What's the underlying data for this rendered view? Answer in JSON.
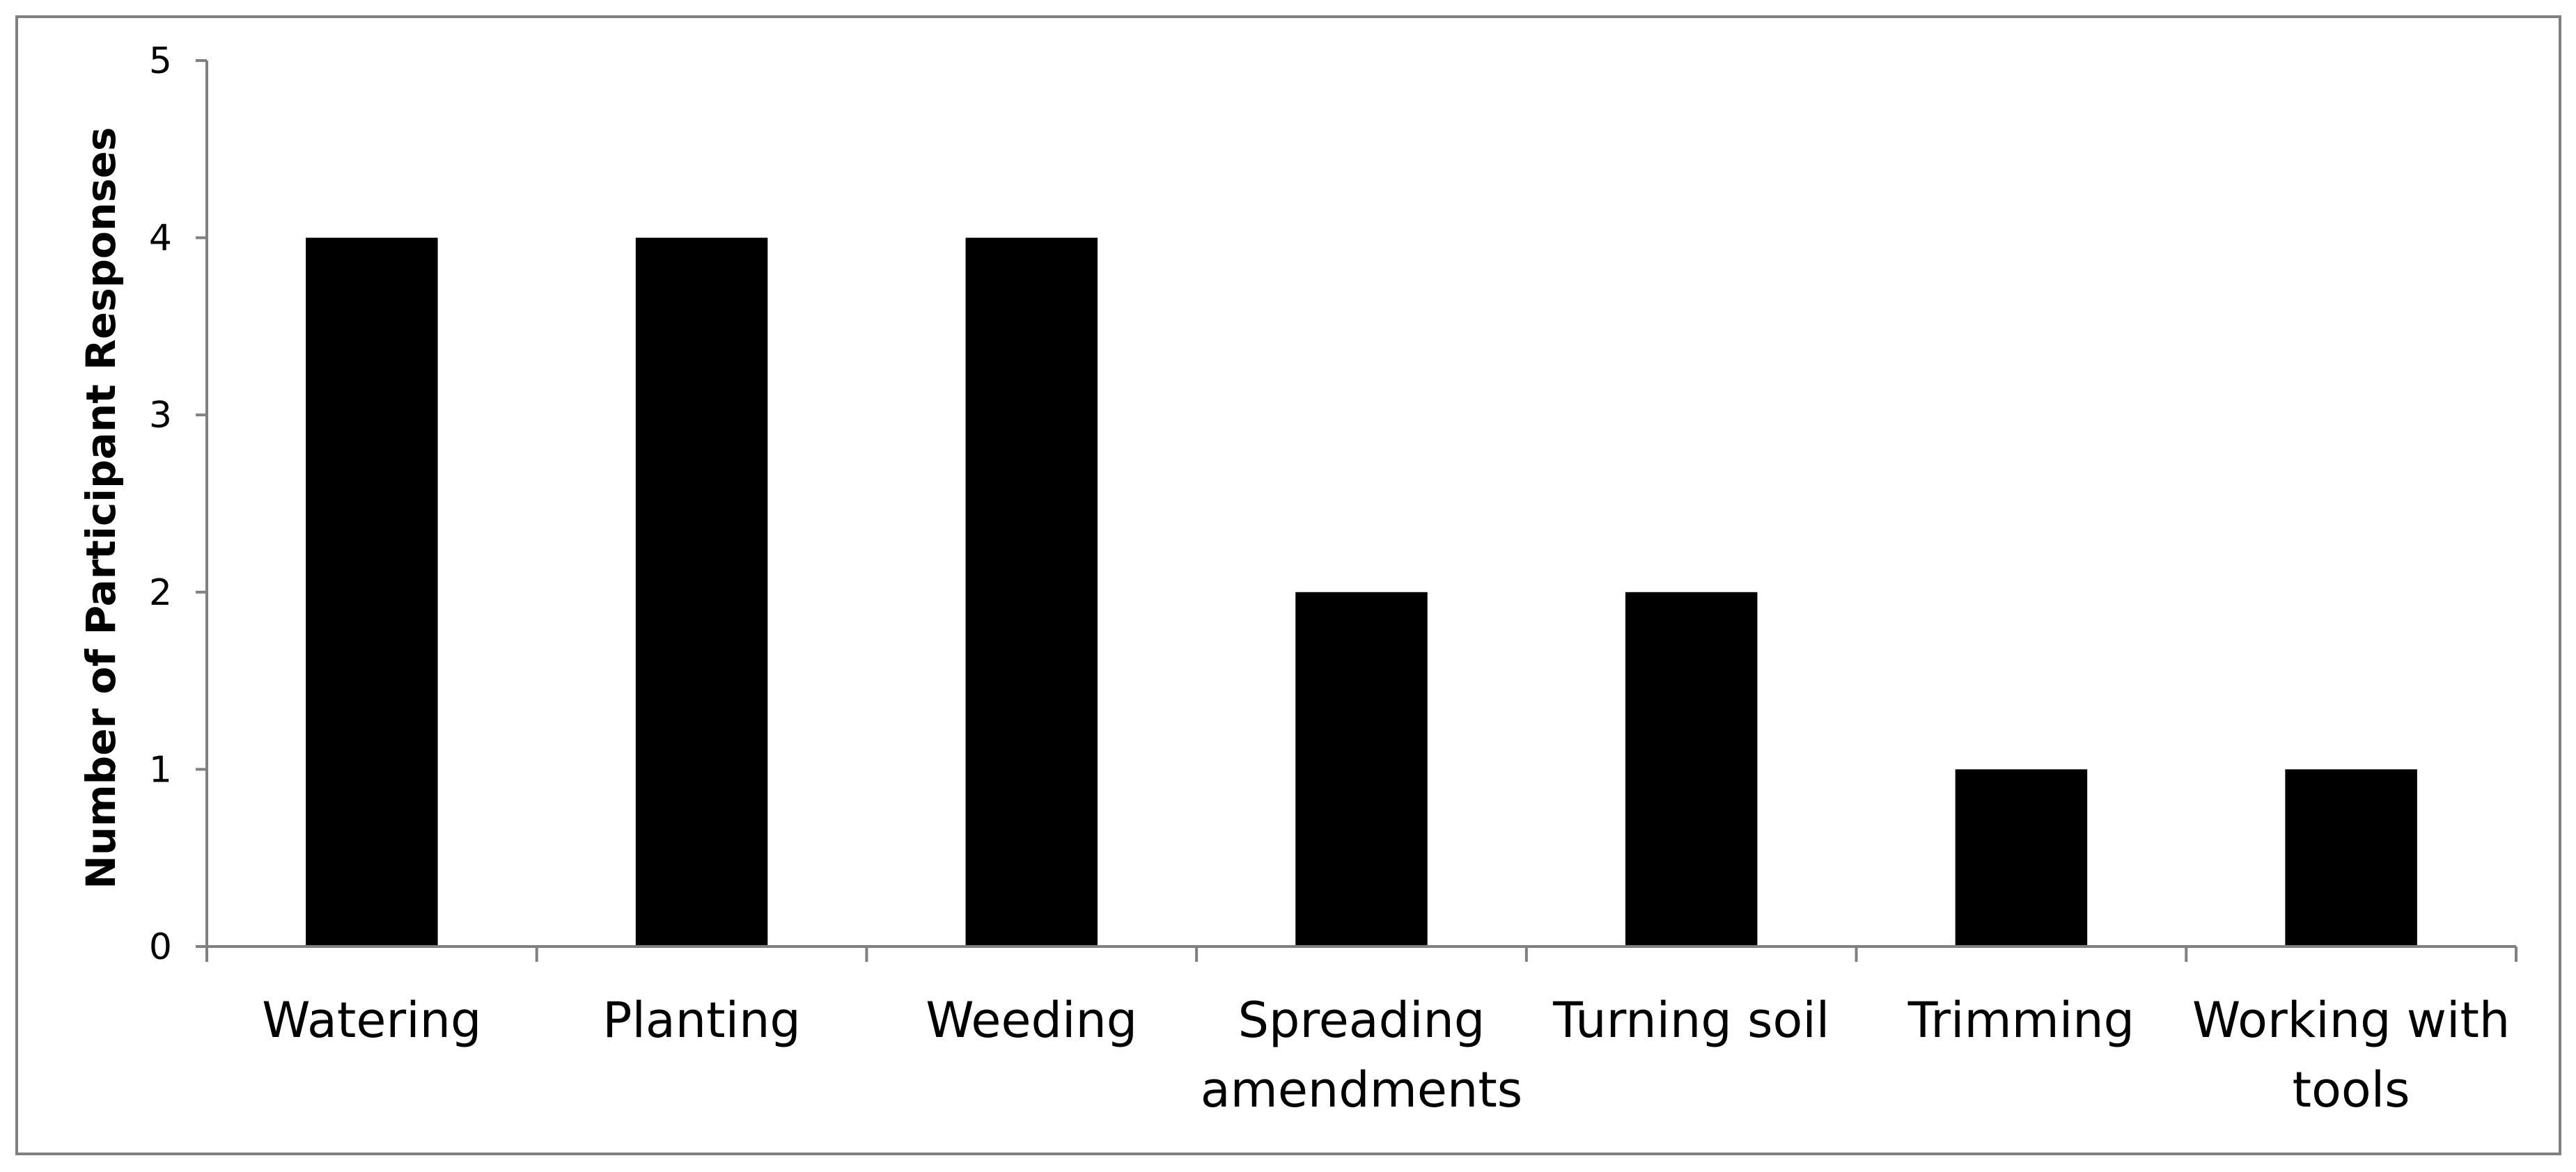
{
  "chart_data": {
    "type": "bar",
    "categories": [
      [
        "Watering"
      ],
      [
        "Planting"
      ],
      [
        "Weeding"
      ],
      [
        "Spreading",
        "amendments"
      ],
      [
        "Turning soil"
      ],
      [
        "Trimming"
      ],
      [
        "Working with",
        "tools"
      ]
    ],
    "values": [
      4,
      4,
      4,
      2,
      2,
      1,
      1
    ],
    "ylabel": "Number of Participant  Responses",
    "xlabel": "",
    "title": "",
    "ylim": [
      0,
      5
    ],
    "yticks": [
      0,
      1,
      2,
      3,
      4,
      5
    ],
    "grid": false,
    "legend": "none",
    "bar_color": "#000000",
    "axis_color": "#808080",
    "frame_color": "#808080"
  }
}
